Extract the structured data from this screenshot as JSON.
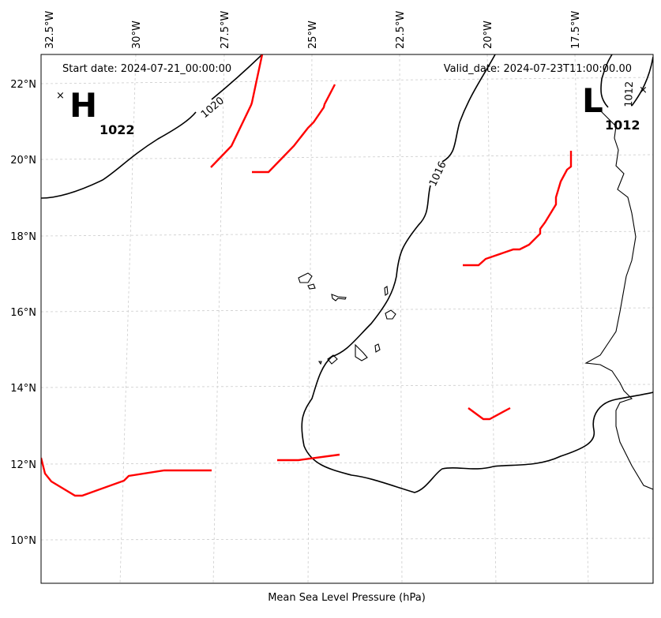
{
  "map": {
    "start_date": "Start date: 2024-07-21_00:00:00",
    "valid_date": "Valid_date: 2024-07-23T11:00:00.00",
    "xlabel": "Mean Sea Level Pressure (hPa)",
    "lon_labels": [
      "32.5°W",
      "30°W",
      "27.5°W",
      "25°W",
      "22.5°W",
      "20°W",
      "17.5°W"
    ],
    "lat_labels": [
      "22°N",
      "20°N",
      "18°N",
      "16°N",
      "14°N",
      "12°N",
      "10°N"
    ],
    "high": {
      "letter": "H",
      "value": "1022",
      "marker": "×"
    },
    "low": {
      "letter": "L",
      "value": "1012",
      "marker": "×"
    },
    "contour_labels": [
      "1020",
      "1016",
      "1012"
    ],
    "colors": {
      "isobar": "#000000",
      "front": "#ff0000"
    }
  }
}
